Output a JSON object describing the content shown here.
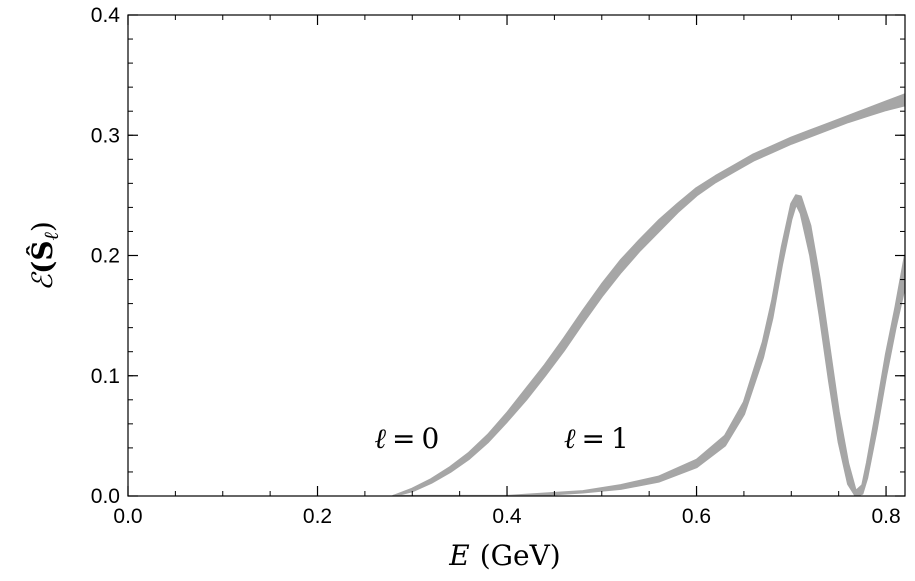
{
  "chart_data": {
    "type": "area",
    "xlabel_symbol": "E",
    "xlabel_unit": "(GeV)",
    "ylabel_symbol": "ℰ",
    "ylabel_arg": "(Ŝ",
    "ylabel_sub": "ℓ",
    "ylabel_close": ")",
    "xlim": [
      0.0,
      0.82
    ],
    "ylim": [
      0.0,
      0.4
    ],
    "xticks": [
      0.0,
      0.2,
      0.4,
      0.6,
      0.8
    ],
    "xtick_labels": [
      "0.0",
      "0.2",
      "0.4",
      "0.6",
      "0.8"
    ],
    "yticks": [
      0.0,
      0.1,
      0.2,
      0.3,
      0.4
    ],
    "ytick_labels": [
      "0.0",
      "0.1",
      "0.2",
      "0.3",
      "0.4"
    ],
    "grid": false,
    "band_color": "#a6a6a6",
    "series": [
      {
        "annotation": "ℓ = 0",
        "annotation_at": [
          0.26,
          0.04
        ],
        "x": [
          0.28,
          0.3,
          0.32,
          0.34,
          0.36,
          0.38,
          0.4,
          0.42,
          0.44,
          0.46,
          0.48,
          0.5,
          0.52,
          0.54,
          0.56,
          0.58,
          0.6,
          0.62,
          0.64,
          0.66,
          0.68,
          0.7,
          0.72,
          0.74,
          0.76,
          0.78,
          0.8,
          0.82
        ],
        "lower": [
          0.0,
          0.004,
          0.011,
          0.02,
          0.031,
          0.045,
          0.062,
          0.08,
          0.1,
          0.121,
          0.144,
          0.166,
          0.186,
          0.204,
          0.22,
          0.236,
          0.25,
          0.261,
          0.27,
          0.279,
          0.286,
          0.293,
          0.299,
          0.305,
          0.311,
          0.316,
          0.321,
          0.325
        ],
        "upper": [
          0.0,
          0.006,
          0.014,
          0.024,
          0.036,
          0.051,
          0.069,
          0.089,
          0.109,
          0.131,
          0.154,
          0.176,
          0.196,
          0.213,
          0.229,
          0.243,
          0.256,
          0.266,
          0.275,
          0.284,
          0.291,
          0.298,
          0.304,
          0.31,
          0.316,
          0.322,
          0.328,
          0.334
        ]
      },
      {
        "annotation": "ℓ = 1",
        "annotation_at": [
          0.46,
          0.04
        ],
        "x": [
          0.28,
          0.32,
          0.36,
          0.4,
          0.44,
          0.48,
          0.52,
          0.56,
          0.6,
          0.63,
          0.65,
          0.67,
          0.68,
          0.69,
          0.7,
          0.705,
          0.71,
          0.72,
          0.73,
          0.74,
          0.75,
          0.76,
          0.768,
          0.775,
          0.78,
          0.79,
          0.8,
          0.81,
          0.82
        ],
        "lower": [
          0.0,
          0.0,
          0.0,
          0.0,
          0.001,
          0.003,
          0.006,
          0.012,
          0.024,
          0.042,
          0.068,
          0.115,
          0.148,
          0.192,
          0.23,
          0.243,
          0.235,
          0.2,
          0.15,
          0.095,
          0.045,
          0.01,
          0.0,
          0.002,
          0.015,
          0.055,
          0.1,
          0.14,
          0.175
        ],
        "upper": [
          0.0,
          0.0,
          0.0,
          0.0,
          0.002,
          0.004,
          0.009,
          0.016,
          0.03,
          0.05,
          0.078,
          0.128,
          0.163,
          0.207,
          0.243,
          0.25,
          0.249,
          0.225,
          0.18,
          0.125,
          0.07,
          0.027,
          0.004,
          0.009,
          0.028,
          0.072,
          0.118,
          0.157,
          0.2
        ]
      }
    ]
  }
}
